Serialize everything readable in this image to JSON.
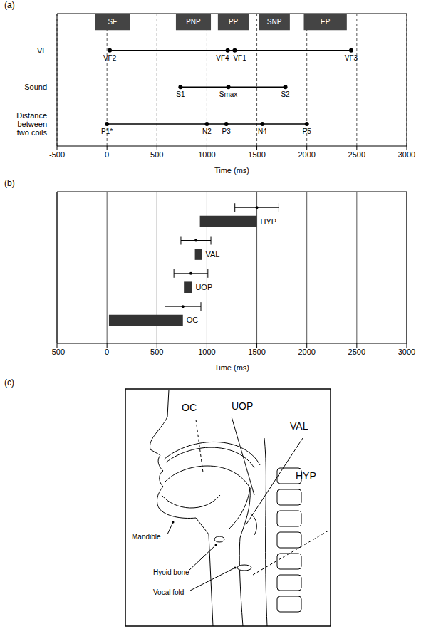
{
  "chart_data": [
    {
      "panel": "(a)",
      "type": "timeline",
      "xlabel": "Time (ms)",
      "xlim": [
        -500,
        3000
      ],
      "xticks": [
        -500,
        0,
        500,
        1000,
        1500,
        2000,
        2500,
        3000
      ],
      "grid": true,
      "phases": [
        {
          "label": "SF",
          "start": -120,
          "end": 230
        },
        {
          "label": "PNP",
          "start": 690,
          "end": 1040
        },
        {
          "label": "PP",
          "start": 1110,
          "end": 1420
        },
        {
          "label": "SNP",
          "start": 1520,
          "end": 1830
        },
        {
          "label": "EP",
          "start": 1970,
          "end": 2400
        }
      ],
      "rows": [
        {
          "name": "VF",
          "points": [
            {
              "label": "VF2",
              "x": 28
            },
            {
              "label": "VF4",
              "x": 1208
            },
            {
              "label": "VF1",
              "x": 1278
            },
            {
              "label": "VF3",
              "x": 2444
            }
          ]
        },
        {
          "name": "Sound",
          "points": [
            {
              "label": "S1",
              "x": 736
            },
            {
              "label": "Smax",
              "x": 1215
            },
            {
              "label": "S2",
              "x": 1785
            }
          ]
        },
        {
          "name": "Distance between two coils",
          "points": [
            {
              "label": "P1*",
              "x": 0
            },
            {
              "label": "N2",
              "x": 1000
            },
            {
              "label": "P3",
              "x": 1194
            },
            {
              "label": "N4",
              "x": 1555
            },
            {
              "label": "P5",
              "x": 2000
            }
          ]
        }
      ]
    },
    {
      "panel": "(b)",
      "type": "range_bar",
      "orientation": "horizontal",
      "xlabel": "Time (ms)",
      "xlim": [
        -500,
        3000
      ],
      "xticks": [
        -500,
        0,
        500,
        1000,
        1500,
        2000,
        2500,
        3000
      ],
      "grid": true,
      "color": "#333333",
      "categories": [
        "HYP",
        "VAL",
        "UOP",
        "OC"
      ],
      "starts": [
        930,
        880,
        770,
        20
      ],
      "ends": [
        1500,
        950,
        850,
        760
      ],
      "error_centers": [
        1500,
        890,
        840,
        760
      ],
      "errors": [
        220,
        150,
        170,
        180
      ]
    }
  ],
  "diagram": {
    "panel": "(c)",
    "regions": [
      "OC",
      "UOP",
      "VAL",
      "HYP"
    ],
    "structures": [
      "Mandible",
      "Hyoid bone",
      "Vocal fold"
    ]
  }
}
